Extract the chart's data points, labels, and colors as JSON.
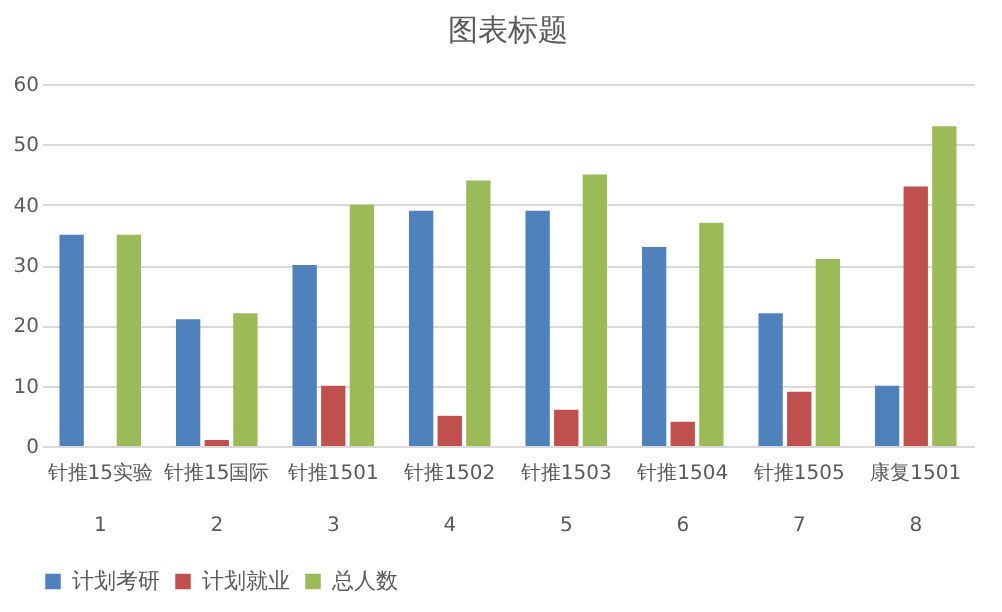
{
  "chart_data": {
    "type": "bar",
    "title": "图表标题",
    "categories": [
      "针推15实验\n1",
      "针推15国际\n2",
      "针推1501\n3",
      "针推1502\n4",
      "针推1503\n5",
      "针推1504\n6",
      "针推1505\n7",
      "康复1501\n8"
    ],
    "series": [
      {
        "name": "计划考研",
        "color": "#4f81bd",
        "values": [
          35,
          21,
          30,
          39,
          39,
          33,
          22,
          10
        ]
      },
      {
        "name": "计划就业",
        "color": "#c0504d",
        "values": [
          0,
          1,
          10,
          5,
          6,
          4,
          9,
          43
        ]
      },
      {
        "name": "总人数",
        "color": "#9bbb59",
        "values": [
          35,
          22,
          40,
          44,
          45,
          37,
          31,
          53
        ]
      }
    ],
    "ylim": [
      0,
      60
    ],
    "yticks": [
      0,
      10,
      20,
      30,
      40,
      50,
      60
    ],
    "grid": "y",
    "legend": "bottom"
  }
}
